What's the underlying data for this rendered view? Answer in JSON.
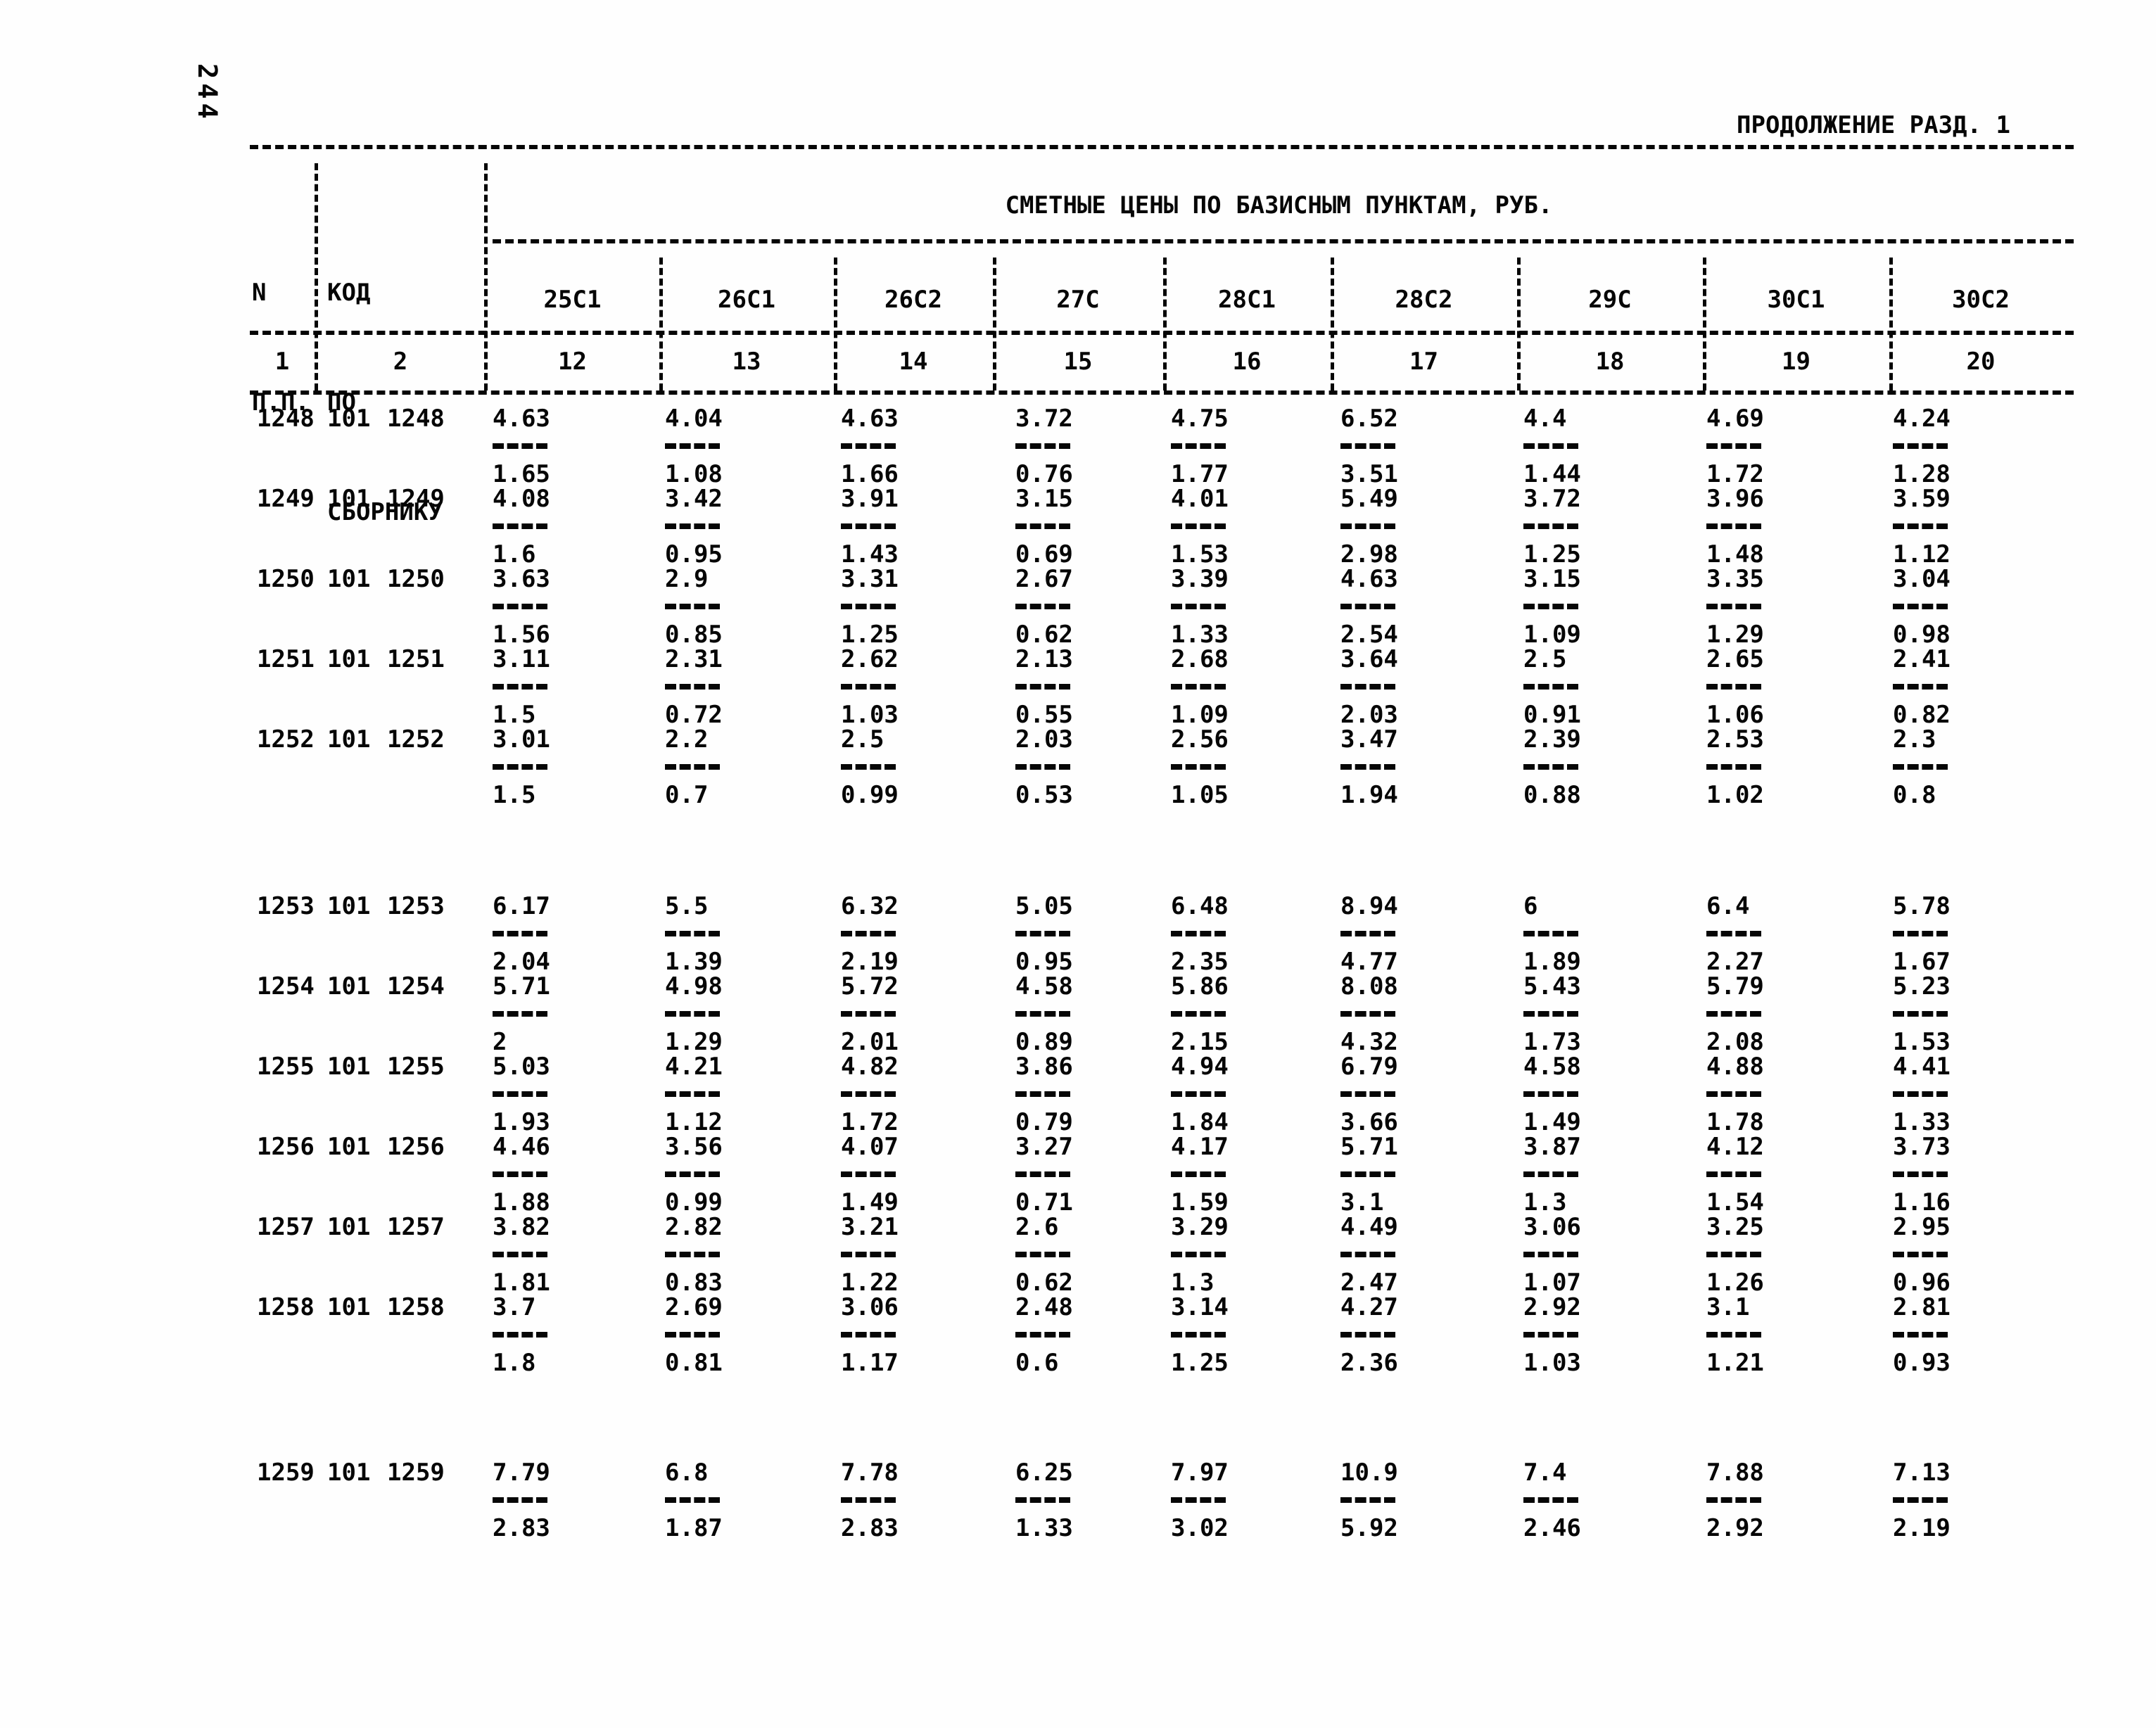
{
  "page": {
    "page_number": "244",
    "continuation_title": "ПРОДОЛЖЕНИЕ РАЗД. 1"
  },
  "table": {
    "header": {
      "row_num_label": [
        "N",
        "П.П."
      ],
      "code_label": [
        "КОД",
        "ПО",
        "СБОРНИКУ"
      ],
      "prices_title": "СМЕТНЫЕ ЦЕНЫ ПО БАЗИСНЫМ ПУНКТАМ, РУБ.",
      "price_columns": [
        "25С1",
        "26С1",
        "26С2",
        "27С",
        "28С1",
        "28С2",
        "29С",
        "30С1",
        "30С2"
      ],
      "column_numbers": [
        "1",
        "2",
        "12",
        "13",
        "14",
        "15",
        "16",
        "17",
        "18",
        "19",
        "20"
      ]
    },
    "row_groups": [
      {
        "rows": [
          {
            "n": "1248",
            "code": "101 1248",
            "values": [
              {
                "num": "4.63",
                "den": "1.65"
              },
              {
                "num": "4.04",
                "den": "1.08"
              },
              {
                "num": "4.63",
                "den": "1.66"
              },
              {
                "num": "3.72",
                "den": "0.76"
              },
              {
                "num": "4.75",
                "den": "1.77"
              },
              {
                "num": "6.52",
                "den": "3.51"
              },
              {
                "num": "4.4",
                "den": "1.44"
              },
              {
                "num": "4.69",
                "den": "1.72"
              },
              {
                "num": "4.24",
                "den": "1.28"
              }
            ]
          },
          {
            "n": "1249",
            "code": "101 1249",
            "values": [
              {
                "num": "4.08",
                "den": "1.6"
              },
              {
                "num": "3.42",
                "den": "0.95"
              },
              {
                "num": "3.91",
                "den": "1.43"
              },
              {
                "num": "3.15",
                "den": "0.69"
              },
              {
                "num": "4.01",
                "den": "1.53"
              },
              {
                "num": "5.49",
                "den": "2.98"
              },
              {
                "num": "3.72",
                "den": "1.25"
              },
              {
                "num": "3.96",
                "den": "1.48"
              },
              {
                "num": "3.59",
                "den": "1.12"
              }
            ]
          },
          {
            "n": "1250",
            "code": "101 1250",
            "values": [
              {
                "num": "3.63",
                "den": "1.56"
              },
              {
                "num": "2.9",
                "den": "0.85"
              },
              {
                "num": "3.31",
                "den": "1.25"
              },
              {
                "num": "2.67",
                "den": "0.62"
              },
              {
                "num": "3.39",
                "den": "1.33"
              },
              {
                "num": "4.63",
                "den": "2.54"
              },
              {
                "num": "3.15",
                "den": "1.09"
              },
              {
                "num": "3.35",
                "den": "1.29"
              },
              {
                "num": "3.04",
                "den": "0.98"
              }
            ]
          },
          {
            "n": "1251",
            "code": "101 1251",
            "values": [
              {
                "num": "3.11",
                "den": "1.5"
              },
              {
                "num": "2.31",
                "den": "0.72"
              },
              {
                "num": "2.62",
                "den": "1.03"
              },
              {
                "num": "2.13",
                "den": "0.55"
              },
              {
                "num": "2.68",
                "den": "1.09"
              },
              {
                "num": "3.64",
                "den": "2.03"
              },
              {
                "num": "2.5",
                "den": "0.91"
              },
              {
                "num": "2.65",
                "den": "1.06"
              },
              {
                "num": "2.41",
                "den": "0.82"
              }
            ]
          },
          {
            "n": "1252",
            "code": "101 1252",
            "values": [
              {
                "num": "3.01",
                "den": "1.5"
              },
              {
                "num": "2.2",
                "den": "0.7"
              },
              {
                "num": "2.5",
                "den": "0.99"
              },
              {
                "num": "2.03",
                "den": "0.53"
              },
              {
                "num": "2.56",
                "den": "1.05"
              },
              {
                "num": "3.47",
                "den": "1.94"
              },
              {
                "num": "2.39",
                "den": "0.88"
              },
              {
                "num": "2.53",
                "den": "1.02"
              },
              {
                "num": "2.3",
                "den": "0.8"
              }
            ]
          }
        ]
      },
      {
        "rows": [
          {
            "n": "1253",
            "code": "101 1253",
            "values": [
              {
                "num": "6.17",
                "den": "2.04"
              },
              {
                "num": "5.5",
                "den": "1.39"
              },
              {
                "num": "6.32",
                "den": "2.19"
              },
              {
                "num": "5.05",
                "den": "0.95"
              },
              {
                "num": "6.48",
                "den": "2.35"
              },
              {
                "num": "8.94",
                "den": "4.77"
              },
              {
                "num": "6",
                "den": "1.89"
              },
              {
                "num": "6.4",
                "den": "2.27"
              },
              {
                "num": "5.78",
                "den": "1.67"
              }
            ]
          },
          {
            "n": "1254",
            "code": "101 1254",
            "values": [
              {
                "num": "5.71",
                "den": "2"
              },
              {
                "num": "4.98",
                "den": "1.29"
              },
              {
                "num": "5.72",
                "den": "2.01"
              },
              {
                "num": "4.58",
                "den": "0.89"
              },
              {
                "num": "5.86",
                "den": "2.15"
              },
              {
                "num": "8.08",
                "den": "4.32"
              },
              {
                "num": "5.43",
                "den": "1.73"
              },
              {
                "num": "5.79",
                "den": "2.08"
              },
              {
                "num": "5.23",
                "den": "1.53"
              }
            ]
          },
          {
            "n": "1255",
            "code": "101 1255",
            "values": [
              {
                "num": "5.03",
                "den": "1.93"
              },
              {
                "num": "4.21",
                "den": "1.12"
              },
              {
                "num": "4.82",
                "den": "1.72"
              },
              {
                "num": "3.86",
                "den": "0.79"
              },
              {
                "num": "4.94",
                "den": "1.84"
              },
              {
                "num": "6.79",
                "den": "3.66"
              },
              {
                "num": "4.58",
                "den": "1.49"
              },
              {
                "num": "4.88",
                "den": "1.78"
              },
              {
                "num": "4.41",
                "den": "1.33"
              }
            ]
          },
          {
            "n": "1256",
            "code": "101 1256",
            "values": [
              {
                "num": "4.46",
                "den": "1.88"
              },
              {
                "num": "3.56",
                "den": "0.99"
              },
              {
                "num": "4.07",
                "den": "1.49"
              },
              {
                "num": "3.27",
                "den": "0.71"
              },
              {
                "num": "4.17",
                "den": "1.59"
              },
              {
                "num": "5.71",
                "den": "3.1"
              },
              {
                "num": "3.87",
                "den": "1.3"
              },
              {
                "num": "4.12",
                "den": "1.54"
              },
              {
                "num": "3.73",
                "den": "1.16"
              }
            ]
          },
          {
            "n": "1257",
            "code": "101 1257",
            "values": [
              {
                "num": "3.82",
                "den": "1.81"
              },
              {
                "num": "2.82",
                "den": "0.83"
              },
              {
                "num": "3.21",
                "den": "1.22"
              },
              {
                "num": "2.6",
                "den": "0.62"
              },
              {
                "num": "3.29",
                "den": "1.3"
              },
              {
                "num": "4.49",
                "den": "2.47"
              },
              {
                "num": "3.06",
                "den": "1.07"
              },
              {
                "num": "3.25",
                "den": "1.26"
              },
              {
                "num": "2.95",
                "den": "0.96"
              }
            ]
          },
          {
            "n": "1258",
            "code": "101 1258",
            "values": [
              {
                "num": "3.7",
                "den": "1.8"
              },
              {
                "num": "2.69",
                "den": "0.81"
              },
              {
                "num": "3.06",
                "den": "1.17"
              },
              {
                "num": "2.48",
                "den": "0.6"
              },
              {
                "num": "3.14",
                "den": "1.25"
              },
              {
                "num": "4.27",
                "den": "2.36"
              },
              {
                "num": "2.92",
                "den": "1.03"
              },
              {
                "num": "3.1",
                "den": "1.21"
              },
              {
                "num": "2.81",
                "den": "0.93"
              }
            ]
          }
        ]
      },
      {
        "rows": [
          {
            "n": "1259",
            "code": "101 1259",
            "values": [
              {
                "num": "7.79",
                "den": "2.83"
              },
              {
                "num": "6.8",
                "den": "1.87"
              },
              {
                "num": "7.78",
                "den": "2.83"
              },
              {
                "num": "6.25",
                "den": "1.33"
              },
              {
                "num": "7.97",
                "den": "3.02"
              },
              {
                "num": "10.9",
                "den": "5.92"
              },
              {
                "num": "7.4",
                "den": "2.46"
              },
              {
                "num": "7.88",
                "den": "2.92"
              },
              {
                "num": "7.13",
                "den": "2.19"
              }
            ]
          }
        ]
      }
    ]
  }
}
